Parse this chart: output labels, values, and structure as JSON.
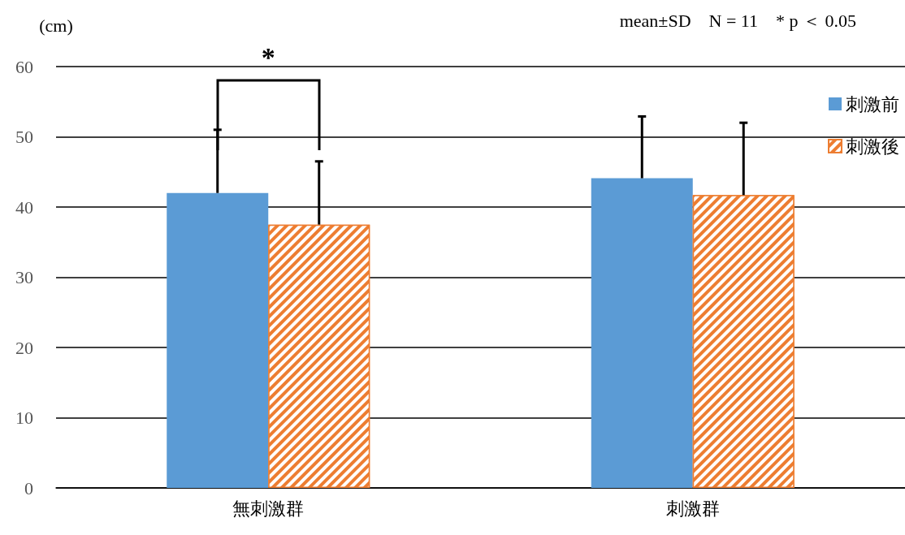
{
  "chart_data": {
    "type": "bar",
    "ylabel": "(cm)",
    "categories": [
      "無刺激群",
      "刺激群"
    ],
    "series": [
      {
        "name": "刺激前",
        "color": "#5b9bd5",
        "values": [
          42,
          44.1
        ],
        "errors": [
          [
            42,
            51
          ],
          [
            44.1,
            52.9
          ]
        ]
      },
      {
        "name": "刺激後",
        "color": "#ed7d31",
        "values": [
          37.5,
          41.7
        ],
        "errors": [
          [
            37.5,
            46.5
          ],
          [
            41.7,
            52
          ]
        ]
      }
    ],
    "ylim": [
      0,
      60
    ],
    "yticks": [
      0,
      10,
      20,
      30,
      40,
      50,
      60
    ],
    "grid": "y",
    "legend": "top right",
    "annotations": [
      "mean±SD　N = 11　* p ＜ 0.05",
      "*"
    ]
  }
}
